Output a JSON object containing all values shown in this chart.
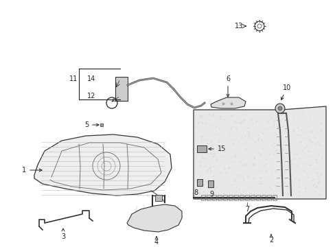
{
  "background_color": "#ffffff",
  "figsize": [
    4.89,
    3.6
  ],
  "dpi": 100,
  "text_color": "#222222",
  "line_color": "#222222",
  "part_fill": "#f0f0f0",
  "part_edge": "#333333",
  "dot_fill": "#dddddd",
  "fs": 7.0
}
